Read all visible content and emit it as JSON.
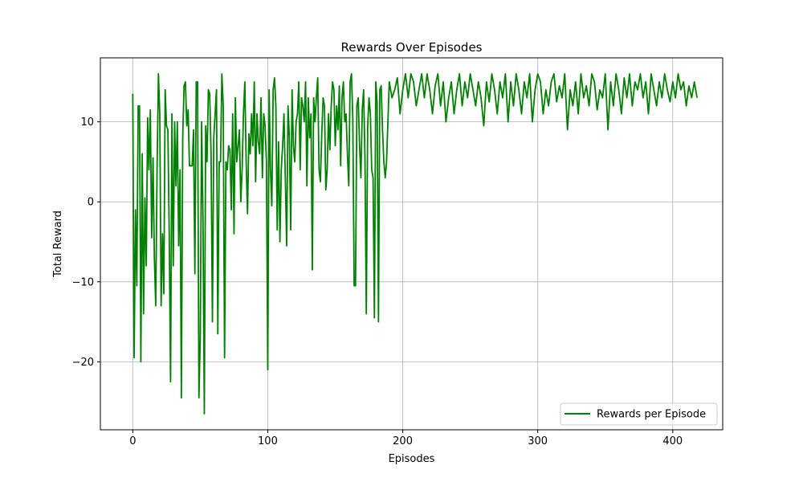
{
  "chart_data": {
    "type": "line",
    "title": "Rewards Over Episodes",
    "xlabel": "Episodes",
    "ylabel": "Total Reward",
    "xlim": [
      -24,
      437
    ],
    "ylim": [
      -28.5,
      18
    ],
    "xticks": [
      0,
      100,
      200,
      300,
      400
    ],
    "yticks": [
      -20,
      -10,
      0,
      10
    ],
    "grid": true,
    "legend_position": "bottom-right",
    "series": [
      {
        "name": "Rewards per Episode",
        "color": "#008000",
        "keypoints": [
          [
            0,
            13.5
          ],
          [
            1,
            -19.5
          ],
          [
            2,
            -1
          ],
          [
            3,
            -10.5
          ],
          [
            4,
            12
          ],
          [
            5,
            12
          ],
          [
            6,
            -20
          ],
          [
            7,
            6
          ],
          [
            8,
            -14
          ],
          [
            9,
            0.5
          ],
          [
            10,
            -8
          ],
          [
            11,
            10.5
          ],
          [
            12,
            4
          ],
          [
            13,
            11.5
          ],
          [
            14,
            -4.5
          ],
          [
            15,
            5.5
          ],
          [
            16,
            -7
          ],
          [
            17,
            -13
          ],
          [
            18,
            4
          ],
          [
            19,
            16
          ],
          [
            20,
            11
          ],
          [
            21,
            -13
          ],
          [
            22,
            -4
          ],
          [
            23,
            -11.5
          ],
          [
            24,
            14
          ],
          [
            25,
            9.5
          ],
          [
            26,
            9
          ],
          [
            27,
            -4
          ],
          [
            28,
            -22.5
          ],
          [
            29,
            11
          ],
          [
            30,
            -8
          ],
          [
            31,
            10
          ],
          [
            32,
            2
          ],
          [
            33,
            10
          ],
          [
            34,
            -5.5
          ],
          [
            35,
            4
          ],
          [
            36,
            -24.5
          ],
          [
            37,
            8
          ],
          [
            38,
            14.5
          ],
          [
            39,
            15
          ],
          [
            40,
            9.5
          ],
          [
            41,
            11.5
          ],
          [
            42,
            4.5
          ],
          [
            43,
            4.5
          ],
          [
            44,
            4.5
          ],
          [
            45,
            9
          ],
          [
            46,
            -9
          ],
          [
            47,
            15
          ],
          [
            48,
            15
          ],
          [
            49,
            -24.5
          ],
          [
            50,
            -17
          ],
          [
            51,
            10
          ],
          [
            52,
            -2
          ],
          [
            53,
            -26.5
          ],
          [
            54,
            9.5
          ],
          [
            55,
            5
          ],
          [
            56,
            14
          ],
          [
            57,
            13.5
          ],
          [
            58,
            6
          ],
          [
            59,
            -15
          ],
          [
            60,
            8
          ],
          [
            61,
            11
          ],
          [
            62,
            14
          ],
          [
            63,
            -16.5
          ],
          [
            64,
            5
          ],
          [
            65,
            5
          ],
          [
            66,
            16
          ],
          [
            67,
            12
          ],
          [
            68,
            -19.5
          ],
          [
            69,
            5
          ],
          [
            70,
            4
          ],
          [
            71,
            7
          ],
          [
            72,
            6.5
          ],
          [
            73,
            -1
          ],
          [
            74,
            11
          ],
          [
            75,
            -4
          ],
          [
            76,
            13
          ],
          [
            77,
            5
          ],
          [
            78,
            7
          ],
          [
            79,
            9
          ],
          [
            80,
            0
          ],
          [
            81,
            4
          ],
          [
            82,
            11
          ],
          [
            83,
            15
          ],
          [
            84,
            5
          ],
          [
            85,
            -1.5
          ],
          [
            86,
            8.5
          ],
          [
            87,
            6
          ],
          [
            88,
            11
          ],
          [
            89,
            7
          ],
          [
            90,
            15
          ],
          [
            91,
            2.5
          ],
          [
            92,
            11
          ],
          [
            93,
            7.5
          ],
          [
            94,
            6
          ],
          [
            95,
            13
          ],
          [
            96,
            3
          ],
          [
            97,
            11
          ],
          [
            98,
            9.5
          ],
          [
            99,
            5
          ],
          [
            100,
            -21
          ],
          [
            101,
            14
          ],
          [
            102,
            4
          ],
          [
            103,
            -0.5
          ],
          [
            104,
            14
          ],
          [
            105,
            15.5
          ],
          [
            106,
            12
          ],
          [
            107,
            -3.5
          ],
          [
            108,
            7.5
          ],
          [
            109,
            -5
          ],
          [
            110,
            4
          ],
          [
            111,
            7
          ],
          [
            112,
            11
          ],
          [
            113,
            3
          ],
          [
            114,
            -5.5
          ],
          [
            115,
            12
          ],
          [
            116,
            8
          ],
          [
            117,
            -3.5
          ],
          [
            118,
            14
          ],
          [
            119,
            7
          ],
          [
            120,
            5
          ],
          [
            121,
            10
          ],
          [
            122,
            11
          ],
          [
            123,
            15
          ],
          [
            124,
            4
          ],
          [
            125,
            13
          ],
          [
            126,
            12
          ],
          [
            127,
            10
          ],
          [
            128,
            15
          ],
          [
            129,
            2
          ],
          [
            130,
            13
          ],
          [
            131,
            8
          ],
          [
            132,
            11
          ],
          [
            133,
            -8.5
          ],
          [
            134,
            13
          ],
          [
            135,
            10
          ],
          [
            136,
            13
          ],
          [
            137,
            15.5
          ],
          [
            138,
            4
          ],
          [
            139,
            2.5
          ],
          [
            140,
            8.5
          ],
          [
            141,
            13
          ],
          [
            142,
            12
          ],
          [
            143,
            1.5
          ],
          [
            144,
            4
          ],
          [
            145,
            11
          ],
          [
            146,
            6.5
          ],
          [
            147,
            12
          ],
          [
            148,
            15
          ],
          [
            149,
            14
          ],
          [
            150,
            7
          ],
          [
            151,
            12
          ],
          [
            152,
            9
          ],
          [
            153,
            14.5
          ],
          [
            154,
            4.5
          ],
          [
            155,
            13
          ],
          [
            156,
            15
          ],
          [
            157,
            10
          ],
          [
            158,
            11
          ],
          [
            159,
            6
          ],
          [
            160,
            2
          ],
          [
            161,
            15
          ],
          [
            162,
            16
          ],
          [
            163,
            10.5
          ],
          [
            164,
            -10.5
          ],
          [
            165,
            -10.5
          ],
          [
            166,
            12
          ],
          [
            167,
            13
          ],
          [
            168,
            7
          ],
          [
            169,
            3
          ],
          [
            170,
            11.5
          ],
          [
            171,
            14
          ],
          [
            172,
            5.5
          ],
          [
            173,
            -14
          ],
          [
            174,
            9.5
          ],
          [
            175,
            13
          ],
          [
            176,
            11
          ],
          [
            177,
            4
          ],
          [
            178,
            3
          ],
          [
            179,
            -14.5
          ],
          [
            180,
            15
          ],
          [
            181,
            12.5
          ],
          [
            182,
            -15
          ],
          [
            183,
            14
          ],
          [
            184,
            14.5
          ],
          [
            185,
            9
          ],
          [
            186,
            5
          ],
          [
            187,
            3
          ],
          [
            188,
            5
          ],
          [
            190,
            15
          ],
          [
            192,
            13
          ],
          [
            194,
            14
          ],
          [
            196,
            15.5
          ],
          [
            198,
            11
          ],
          [
            200,
            14
          ],
          [
            202,
            16
          ],
          [
            204,
            13
          ],
          [
            206,
            16
          ],
          [
            208,
            15
          ],
          [
            210,
            12
          ],
          [
            212,
            14
          ],
          [
            214,
            16
          ],
          [
            216,
            13
          ],
          [
            218,
            16
          ],
          [
            220,
            14
          ],
          [
            222,
            11
          ],
          [
            224,
            14.5
          ],
          [
            226,
            16
          ],
          [
            228,
            12
          ],
          [
            230,
            15
          ],
          [
            232,
            10
          ],
          [
            234,
            13
          ],
          [
            236,
            15
          ],
          [
            238,
            11
          ],
          [
            240,
            14
          ],
          [
            242,
            16
          ],
          [
            244,
            12
          ],
          [
            246,
            15
          ],
          [
            248,
            13
          ],
          [
            250,
            16
          ],
          [
            252,
            14
          ],
          [
            254,
            12
          ],
          [
            256,
            15
          ],
          [
            258,
            13
          ],
          [
            260,
            9.5
          ],
          [
            262,
            15
          ],
          [
            264,
            12.5
          ],
          [
            266,
            16
          ],
          [
            268,
            14
          ],
          [
            270,
            11
          ],
          [
            272,
            15
          ],
          [
            274,
            13
          ],
          [
            276,
            16
          ],
          [
            278,
            10
          ],
          [
            280,
            15
          ],
          [
            282,
            12
          ],
          [
            284,
            16
          ],
          [
            286,
            14
          ],
          [
            288,
            11
          ],
          [
            290,
            15
          ],
          [
            292,
            13
          ],
          [
            294,
            16
          ],
          [
            296,
            10
          ],
          [
            298,
            14
          ],
          [
            300,
            16
          ],
          [
            302,
            15
          ],
          [
            304,
            11
          ],
          [
            306,
            14
          ],
          [
            308,
            12
          ],
          [
            310,
            15
          ],
          [
            312,
            16
          ],
          [
            314,
            12.5
          ],
          [
            316,
            14.5
          ],
          [
            318,
            13
          ],
          [
            320,
            16
          ],
          [
            322,
            9
          ],
          [
            324,
            14
          ],
          [
            326,
            12
          ],
          [
            328,
            15
          ],
          [
            330,
            11
          ],
          [
            332,
            16
          ],
          [
            334,
            13
          ],
          [
            336,
            14.5
          ],
          [
            338,
            12
          ],
          [
            340,
            16
          ],
          [
            342,
            15
          ],
          [
            344,
            11.5
          ],
          [
            346,
            14
          ],
          [
            348,
            13
          ],
          [
            350,
            16
          ],
          [
            352,
            9
          ],
          [
            354,
            15
          ],
          [
            356,
            12
          ],
          [
            358,
            16
          ],
          [
            360,
            14
          ],
          [
            362,
            11
          ],
          [
            364,
            15.5
          ],
          [
            366,
            13
          ],
          [
            368,
            16
          ],
          [
            370,
            12
          ],
          [
            372,
            15
          ],
          [
            374,
            14
          ],
          [
            376,
            16
          ],
          [
            378,
            13
          ],
          [
            380,
            15
          ],
          [
            382,
            11
          ],
          [
            384,
            16
          ],
          [
            386,
            14
          ],
          [
            388,
            12
          ],
          [
            390,
            15
          ],
          [
            392,
            13
          ],
          [
            394,
            16
          ],
          [
            396,
            14
          ],
          [
            398,
            12.5
          ],
          [
            400,
            15
          ],
          [
            402,
            13
          ],
          [
            404,
            16
          ],
          [
            406,
            14
          ],
          [
            408,
            15
          ],
          [
            410,
            12
          ],
          [
            412,
            14.5
          ],
          [
            414,
            13
          ],
          [
            416,
            15
          ],
          [
            418,
            13
          ]
        ]
      }
    ]
  }
}
